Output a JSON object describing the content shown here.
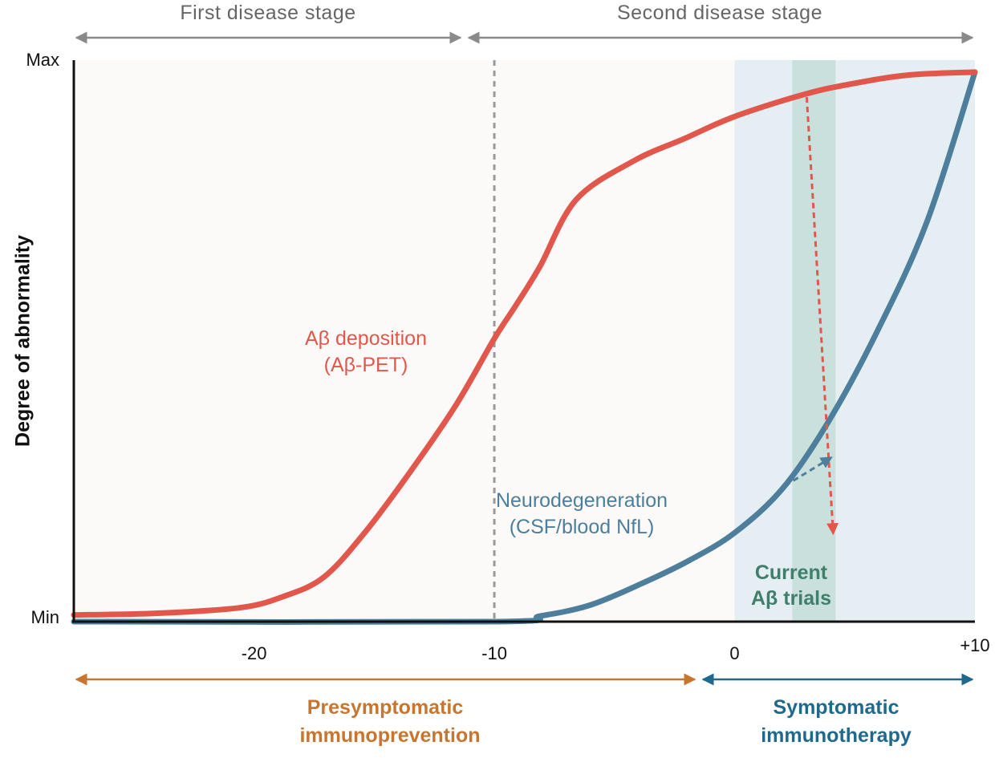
{
  "stages": {
    "first": "First disease stage",
    "second": "Second disease stage"
  },
  "phases": {
    "presymptomatic_line1": "Presymptomatic",
    "presymptomatic_line2": "immunoprevention",
    "symptomatic_line1": "Symptomatic",
    "symptomatic_line2": "immunotherapy"
  },
  "colors": {
    "abeta": "#e2574c",
    "neuro": "#4d7e9c",
    "presymptomatic": "#c8762f",
    "symptomatic": "#1f6a8c",
    "trials": "#3f7f6b",
    "stage_arrow": "#8a8a8a"
  },
  "chart_data": {
    "type": "line",
    "xlabel": "",
    "ylabel": "Degree of abnormality",
    "xlim": [
      -27.5,
      10
    ],
    "ylim": [
      0,
      1
    ],
    "x_ticks": [
      {
        "value": -20,
        "label": "-20"
      },
      {
        "value": -10,
        "label": "-10"
      },
      {
        "value": 0,
        "label": "0"
      },
      {
        "value": 10,
        "label": "+10"
      }
    ],
    "y_ticks": [
      {
        "value": 0,
        "label": "Min"
      },
      {
        "value": 1,
        "label": "Max"
      }
    ],
    "stage_divider_x": -10,
    "series": [
      {
        "name": "Aβ deposition",
        "sublabel": "(Aβ-PET)",
        "color": "#e2574c",
        "x": [
          -27.5,
          -24.1,
          -20.6,
          -18.8,
          -17.1,
          -15.4,
          -13.5,
          -11.6,
          -10.0,
          -9.1,
          -8.1,
          -6.6,
          -4.2,
          -2.1,
          0.0,
          2.9,
          5.0,
          7.3,
          10.0
        ],
        "y": [
          0.012,
          0.015,
          0.025,
          0.045,
          0.08,
          0.16,
          0.27,
          0.39,
          0.51,
          0.57,
          0.64,
          0.76,
          0.83,
          0.87,
          0.91,
          0.95,
          0.97,
          0.985,
          0.99
        ]
      },
      {
        "name": "Neurodegeneration",
        "sublabel": "(CSF/blood NfL)",
        "color": "#4d7e9c",
        "x": [
          -27.5,
          -10.0,
          -8.1,
          -6.0,
          -3.8,
          -1.9,
          0.0,
          2.0,
          3.9,
          5.9,
          8.0,
          10.0
        ],
        "y": [
          0.0,
          0.0,
          0.01,
          0.03,
          0.07,
          0.11,
          0.16,
          0.24,
          0.36,
          0.52,
          0.72,
          0.99
        ]
      }
    ],
    "shaded_regions": [
      {
        "x0": 0,
        "x1": 10,
        "label": "",
        "color": "#e4eef3"
      },
      {
        "x0": 2.4,
        "x1": 4.2,
        "label_line1": "Current",
        "label_line2": "Aβ trials",
        "color": "#c9e0dd"
      }
    ],
    "annotations": [
      {
        "type": "dashed-arrow",
        "color": "#e2574c",
        "from": [
          3.0,
          0.945
        ],
        "to": [
          4.1,
          0.16
        ]
      },
      {
        "type": "dashed-arrow",
        "color": "#4d7e9c",
        "from": [
          2.1,
          0.245
        ],
        "to": [
          4.0,
          0.295
        ]
      }
    ],
    "bottom_arrows": [
      {
        "from": -27.5,
        "to": 0,
        "label": "Presymptomatic immunoprevention"
      },
      {
        "from": 0,
        "to": 10,
        "label": "Symptomatic immunotherapy"
      }
    ],
    "top_arrows": [
      {
        "from": -27.5,
        "to": -10,
        "label": "First disease stage"
      },
      {
        "from": -10,
        "to": 10,
        "label": "Second disease stage"
      }
    ]
  }
}
